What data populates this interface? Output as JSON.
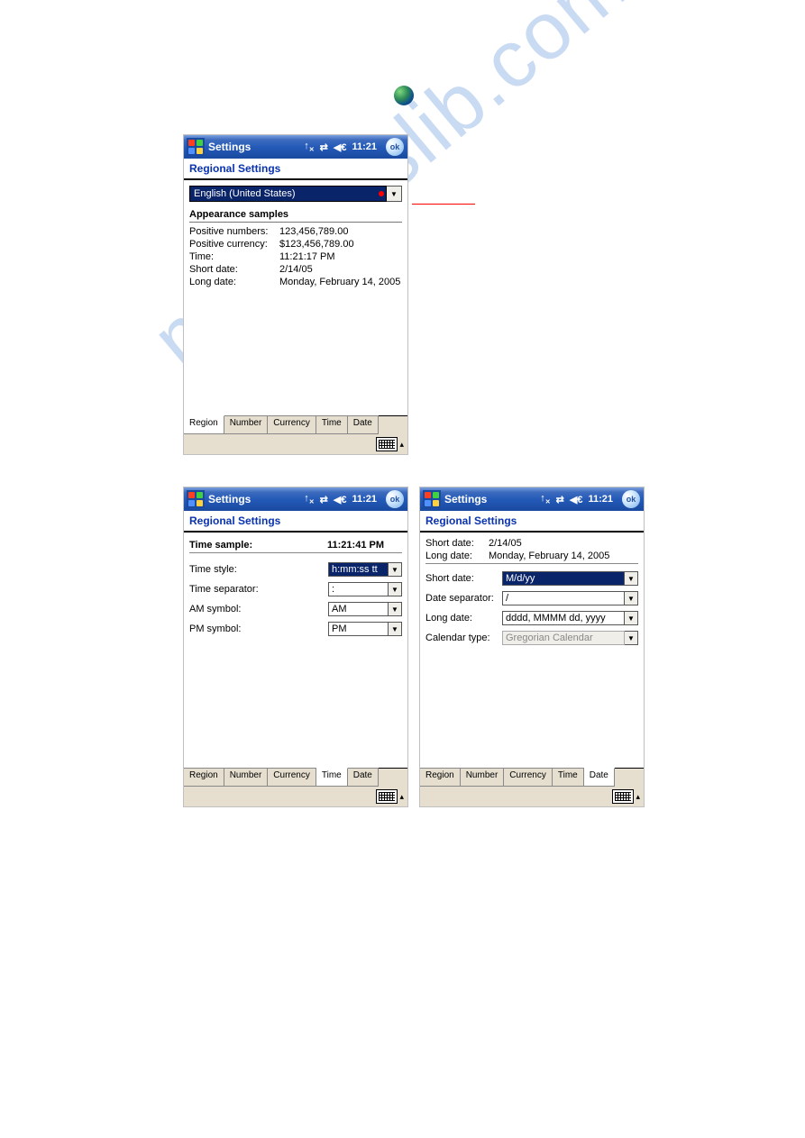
{
  "titlebar": {
    "title": "Settings",
    "time": "11:21",
    "ok": "ok"
  },
  "subtitle": "Regional Settings",
  "region_panel": {
    "dropdown": "English (United States)",
    "samples_heading": "Appearance samples",
    "rows": [
      {
        "label": "Positive numbers:",
        "value": "123,456,789.00"
      },
      {
        "label": "Positive currency:",
        "value": "$123,456,789.00"
      },
      {
        "label": "Time:",
        "value": "11:21:17 PM"
      },
      {
        "label": "Short date:",
        "value": "2/14/05"
      },
      {
        "label": "Long date:",
        "value": "Monday, February 14, 2005"
      }
    ],
    "tabs": [
      "Region",
      "Number",
      "Currency",
      "Time",
      "Date"
    ],
    "active_tab": 0
  },
  "time_panel": {
    "sample_label": "Time sample:",
    "sample_value": "11:21:41 PM",
    "fields": [
      {
        "label": "Time style:",
        "value": "h:mm:ss tt",
        "selected": true
      },
      {
        "label": "Time separator:",
        "value": ":",
        "selected": false
      },
      {
        "label": "AM symbol:",
        "value": "AM",
        "selected": false
      },
      {
        "label": "PM symbol:",
        "value": "PM",
        "selected": false
      }
    ],
    "tabs": [
      "Region",
      "Number",
      "Currency",
      "Time",
      "Date"
    ],
    "active_tab": 3
  },
  "date_panel": {
    "samples": [
      {
        "label": "Short date:",
        "value": "2/14/05"
      },
      {
        "label": "Long date:",
        "value": "Monday, February 14, 2005"
      }
    ],
    "fields": [
      {
        "label": "Short date:",
        "value": "M/d/yy",
        "selected": true,
        "disabled": false
      },
      {
        "label": "Date separator:",
        "value": "/",
        "selected": false,
        "disabled": false
      },
      {
        "label": "Long date:",
        "value": "dddd, MMMM dd, yyyy",
        "selected": false,
        "disabled": false
      },
      {
        "label": "Calendar type:",
        "value": "Gregorian Calendar",
        "selected": false,
        "disabled": true
      }
    ],
    "tabs": [
      "Region",
      "Number",
      "Currency",
      "Time",
      "Date"
    ],
    "active_tab": 4
  },
  "watermark": "manualslib.com",
  "colors": {
    "titlebar_blue": "#245ab8",
    "subtitle_blue": "#0933b0",
    "selection_blue": "#0a246a",
    "tab_bg": "#e6dfd0",
    "red": "#ff0000"
  }
}
